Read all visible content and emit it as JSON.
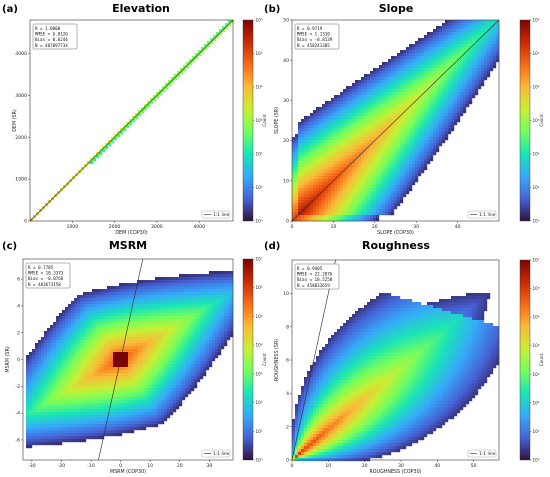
{
  "figure": {
    "background": "#ffffff"
  },
  "colormap": [
    "#30123b",
    "#4662d7",
    "#36aaf9",
    "#1ae4b6",
    "#72fe5e",
    "#c8ef34",
    "#faba39",
    "#f66b19",
    "#ca2a04",
    "#7a0403"
  ],
  "chart_data": [
    {
      "id": "a",
      "letter": "(a)",
      "type": "heatmap",
      "title": "Elevation",
      "xlabel": "DEM (COP30)",
      "ylabel": "DEM (SR)",
      "xlim": [
        0,
        4800
      ],
      "ylim": [
        0,
        4800
      ],
      "xticks": [
        "1000",
        "2000",
        "3000",
        "4000"
      ],
      "yticks": [
        "0",
        "1000",
        "2000",
        "3000",
        "4000"
      ],
      "stats": [
        "R = 1.0000",
        "RMSE = 6.0126",
        "Bias = 0.0244",
        "N = 407097734"
      ],
      "legend": "1:1 line",
      "legend_position": "lower-right",
      "one_to_one_line": true,
      "density_pattern": "thin-diagonal",
      "colorbar": {
        "label": "Count",
        "ticks": [
          "10⁰",
          "10¹",
          "10²",
          "10³",
          "10⁴",
          "10⁵",
          "10⁶"
        ]
      }
    },
    {
      "id": "b",
      "letter": "(b)",
      "type": "heatmap",
      "title": "Slope",
      "xlabel": "SLOPE (COP30)",
      "ylabel": "SLOPE (SR)",
      "xlim": [
        0,
        50
      ],
      "ylim": [
        0,
        50
      ],
      "xticks": [
        "0",
        "10",
        "20",
        "30",
        "40"
      ],
      "yticks": [
        "0",
        "10",
        "20",
        "30",
        "40",
        "50"
      ],
      "stats": [
        "R = 0.9719",
        "RMSE = 1.1310",
        "Bias = -0.8139",
        "N = 458241385"
      ],
      "legend": "1:1 line",
      "legend_position": "lower-right",
      "one_to_one_line": true,
      "density_pattern": "broad-diagonal",
      "colorbar": {
        "label": "Count",
        "ticks": [
          "10⁰",
          "10¹",
          "10²",
          "10³",
          "10⁴",
          "10⁵",
          "10⁶"
        ]
      }
    },
    {
      "id": "c",
      "letter": "(c)",
      "type": "heatmap",
      "title": "MSRM",
      "xlabel": "MSRM (COP30)",
      "ylabel": "MSRM (SR)",
      "xlim": [
        -33,
        38
      ],
      "ylim": [
        -7.5,
        7.5
      ],
      "xticks": [
        "-30",
        "-20",
        "-10",
        "0",
        "10",
        "20",
        "30"
      ],
      "yticks": [
        "-6",
        "-4",
        "-2",
        "0",
        "2",
        "4",
        "6"
      ],
      "stats": [
        "R = 0.7785",
        "RMSE = 10.3373",
        "Bias = -0.0766",
        "N = 403673158"
      ],
      "legend": "1:1 line",
      "legend_position": "lower-right",
      "one_to_one_line": true,
      "density_pattern": "cross-centered",
      "colorbar": {
        "label": "Count",
        "ticks": [
          "10⁰",
          "10¹",
          "10²",
          "10³",
          "10⁴",
          "10⁵",
          "10⁶",
          "10⁷"
        ]
      }
    },
    {
      "id": "d",
      "letter": "(d)",
      "type": "heatmap",
      "title": "Roughness",
      "xlabel": "ROUGHNESS (COP30)",
      "ylabel": "ROUGHNESS (SR)",
      "xlim": [
        0,
        57
      ],
      "ylim": [
        0,
        12
      ],
      "xticks": [
        "0",
        "10",
        "20",
        "30",
        "40",
        "50"
      ],
      "yticks": [
        "0",
        "2",
        "4",
        "6",
        "8",
        "10"
      ],
      "stats": [
        "R = 0.9405",
        "RMSE = 22.2876",
        "Bias = 18.5250",
        "N = 458833659"
      ],
      "legend": "1:1 line",
      "legend_position": "lower-right",
      "one_to_one_line": true,
      "density_pattern": "fan-from-origin",
      "colorbar": {
        "label": "Count",
        "ticks": [
          "10⁰",
          "10¹",
          "10²",
          "10³",
          "10⁴",
          "10⁵",
          "10⁶",
          "10⁷"
        ]
      }
    }
  ]
}
